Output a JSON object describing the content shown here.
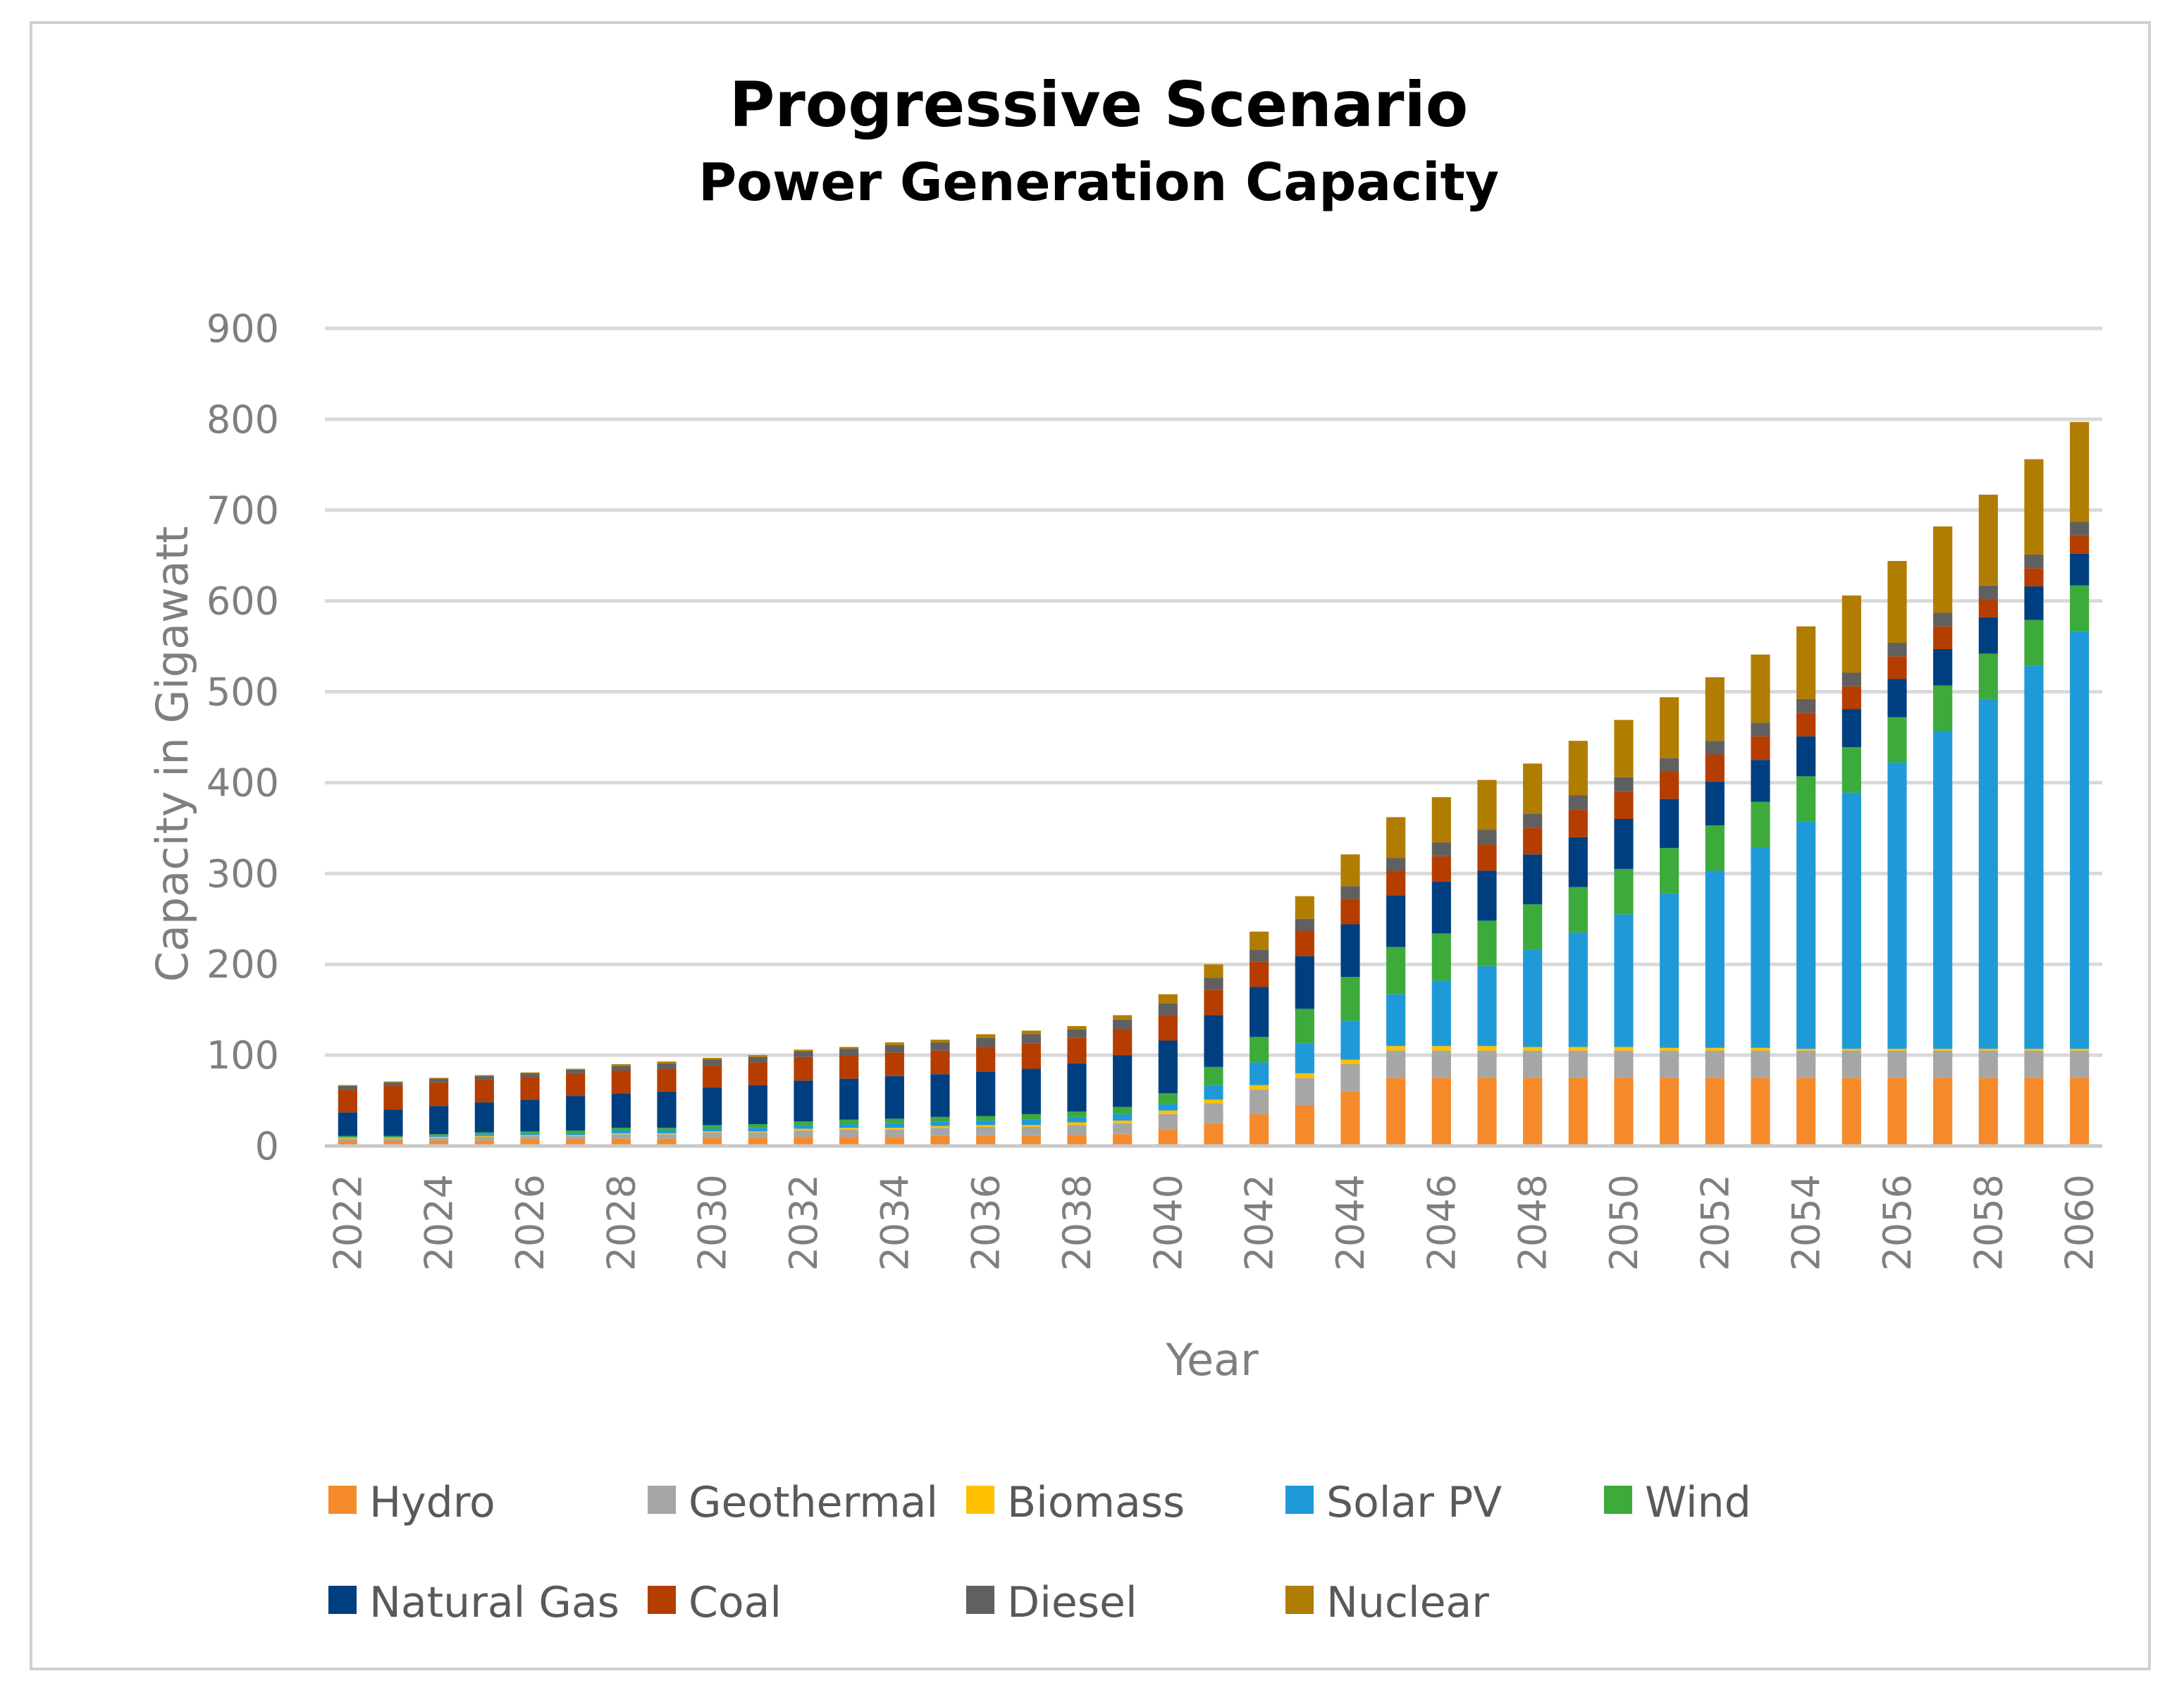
{
  "chart_data": {
    "type": "stacked-bar",
    "title": "Progressive Scenario",
    "subtitle": "Power Generation Capacity",
    "xlabel": "Year",
    "ylabel": "Capacity in Gigawatt",
    "ylim": [
      0,
      900
    ],
    "yticks": [
      0,
      100,
      200,
      300,
      400,
      500,
      600,
      700,
      800,
      900
    ],
    "grid": true,
    "legend_position": "bottom",
    "categories": [
      2022,
      2023,
      2024,
      2025,
      2026,
      2027,
      2028,
      2029,
      2030,
      2031,
      2032,
      2033,
      2034,
      2035,
      2036,
      2037,
      2038,
      2039,
      2040,
      2041,
      2042,
      2043,
      2044,
      2045,
      2046,
      2047,
      2048,
      2049,
      2050,
      2051,
      2052,
      2053,
      2054,
      2055,
      2056,
      2057,
      2058,
      2059,
      2060
    ],
    "tick_labels": [
      "2022",
      "2024",
      "2026",
      "2028",
      "2030",
      "2032",
      "2034",
      "2036",
      "2038",
      "2040",
      "2042",
      "2044",
      "2046",
      "2048",
      "2050",
      "2052",
      "2054",
      "2056",
      "2058",
      "2060"
    ],
    "series": [
      {
        "name": "Hydro",
        "color": "#f58a2b",
        "values": [
          5,
          5,
          6,
          6,
          7,
          7,
          8,
          8,
          9,
          9,
          10,
          10,
          10,
          11,
          11,
          11,
          12,
          13,
          18,
          25,
          35,
          45,
          60,
          75,
          75,
          75,
          75,
          75,
          75,
          75,
          75,
          75,
          75,
          75,
          75,
          75,
          75,
          75,
          75
        ]
      },
      {
        "name": "Geothermal",
        "color": "#a6a6a6",
        "values": [
          3,
          3,
          3,
          4,
          4,
          4,
          5,
          5,
          6,
          6,
          7,
          8,
          8,
          9,
          10,
          10,
          11,
          12,
          17,
          22,
          27,
          30,
          30,
          30,
          30,
          30,
          30,
          30,
          30,
          30,
          30,
          30,
          30,
          30,
          30,
          30,
          30,
          30,
          30
        ]
      },
      {
        "name": "Biomass",
        "color": "#ffc000",
        "values": [
          1,
          1,
          1,
          1,
          1,
          1,
          1,
          1,
          1,
          1,
          2,
          2,
          2,
          2,
          2,
          2,
          3,
          3,
          4,
          4,
          5,
          5,
          5,
          5,
          5,
          5,
          4,
          4,
          4,
          3,
          3,
          3,
          2,
          2,
          2,
          2,
          2,
          2,
          2
        ]
      },
      {
        "name": "Solar PV",
        "color": "#1f9ad8",
        "values": [
          1,
          1,
          1,
          2,
          2,
          2,
          3,
          3,
          3,
          4,
          4,
          4,
          5,
          5,
          5,
          6,
          6,
          7,
          7,
          16,
          25,
          33,
          43,
          57,
          72,
          88,
          107,
          126,
          146,
          170,
          195,
          221,
          250,
          282,
          315,
          350,
          385,
          422,
          460
        ]
      },
      {
        "name": "Wind",
        "color": "#3daa3c",
        "values": [
          1,
          1,
          2,
          2,
          2,
          3,
          3,
          3,
          4,
          4,
          4,
          5,
          5,
          5,
          5,
          6,
          6,
          8,
          12,
          20,
          28,
          38,
          48,
          52,
          52,
          50,
          50,
          50,
          50,
          50,
          50,
          50,
          50,
          50,
          50,
          50,
          50,
          50,
          50
        ]
      },
      {
        "name": "Natural Gas",
        "color": "#003f7f",
        "values": [
          26,
          29,
          31,
          33,
          35,
          38,
          38,
          40,
          41,
          43,
          45,
          45,
          47,
          47,
          49,
          50,
          53,
          57,
          58,
          57,
          55,
          58,
          58,
          57,
          57,
          55,
          55,
          55,
          55,
          54,
          48,
          46,
          44,
          42,
          42,
          40,
          40,
          37,
          35
        ]
      },
      {
        "name": "Coal",
        "color": "#b53d00",
        "values": [
          25,
          26,
          26,
          25,
          25,
          25,
          25,
          25,
          25,
          25,
          26,
          26,
          26,
          26,
          27,
          28,
          28,
          28,
          28,
          28,
          28,
          28,
          28,
          27,
          28,
          29,
          29,
          30,
          30,
          30,
          30,
          26,
          26,
          25,
          25,
          25,
          20,
          20,
          20
        ]
      },
      {
        "name": "Diesel",
        "color": "#606060",
        "values": [
          4,
          4,
          4,
          4,
          4,
          4,
          5,
          6,
          6,
          6,
          6,
          7,
          8,
          9,
          10,
          10,
          9,
          11,
          13,
          13,
          13,
          13,
          14,
          14,
          15,
          16,
          16,
          16,
          16,
          15,
          15,
          15,
          15,
          15,
          15,
          15,
          15,
          15,
          15
        ]
      },
      {
        "name": "Nuclear",
        "color": "#b07d00",
        "values": [
          1,
          1,
          1,
          1,
          1,
          1,
          2,
          2,
          2,
          2,
          2,
          2,
          3,
          3,
          4,
          4,
          4,
          5,
          10,
          15,
          20,
          25,
          35,
          45,
          50,
          55,
          55,
          60,
          63,
          67,
          70,
          75,
          80,
          85,
          90,
          95,
          100,
          105,
          110
        ]
      }
    ]
  }
}
